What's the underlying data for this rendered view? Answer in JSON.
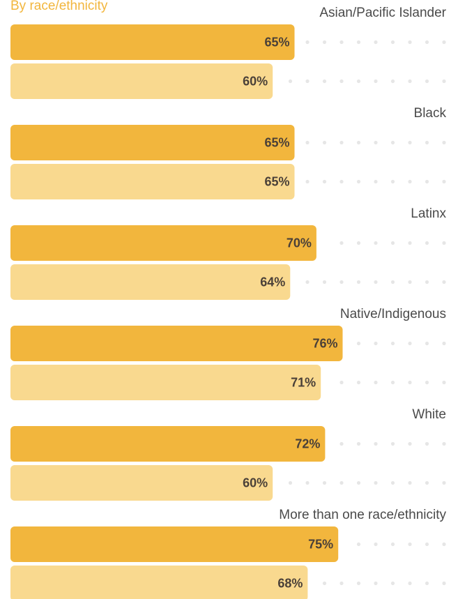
{
  "subtitle": "By race/ethnicity",
  "colors": {
    "subtitle": "#f2b63d",
    "series_a": "#f2b63d",
    "series_b": "#f9d98f",
    "dots": "#e6e6e6",
    "label": "#4a4a4a",
    "value": "#4a4038"
  },
  "chart_data": {
    "type": "bar",
    "orientation": "horizontal",
    "categories": [
      "Asian/Pacific Islander",
      "Black",
      "Latinx",
      "Native/Indigenous",
      "White",
      "More than one race/ethnicity"
    ],
    "series": [
      {
        "values": [
          65,
          65,
          70,
          76,
          72,
          75
        ]
      },
      {
        "values": [
          60,
          65,
          64,
          71,
          60,
          68
        ]
      }
    ],
    "value_labels": [
      [
        "65%",
        "65%",
        "70%",
        "76%",
        "72%",
        "75%"
      ],
      [
        "60%",
        "65%",
        "64%",
        "71%",
        "60%",
        "68%"
      ]
    ],
    "xlim": [
      0,
      100
    ],
    "grid": false
  }
}
